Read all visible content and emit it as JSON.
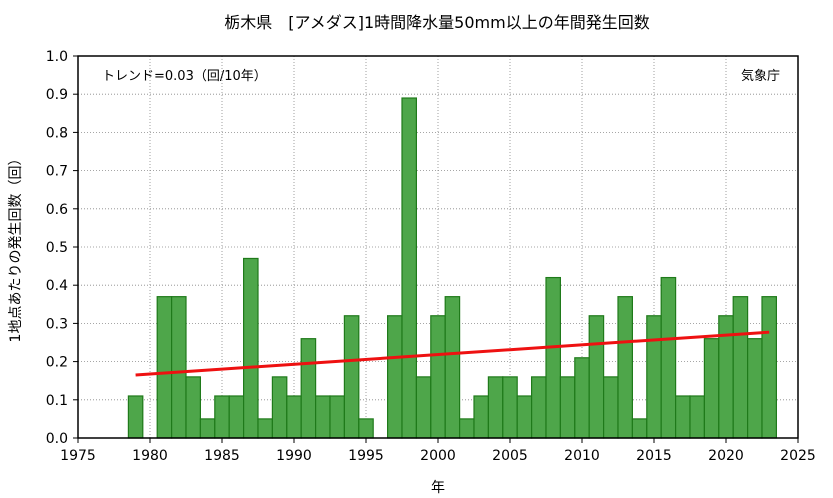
{
  "chart_data": {
    "type": "bar",
    "title": "栃木県　[アメダス]1時間降水量50mm以上の年間発生回数",
    "xlabel": "年",
    "ylabel": "1地点あたりの発生回数（回）",
    "trend_text": "トレンド=0.03（回/10年）",
    "source": "気象庁",
    "xlim": [
      1975,
      2025
    ],
    "ylim": [
      0,
      1.0
    ],
    "x_ticks": [
      "1975",
      "1980",
      "1985",
      "1990",
      "1995",
      "2000",
      "2005",
      "2010",
      "2015",
      "2020",
      "2025"
    ],
    "y_ticks": [
      "0.0",
      "0.1",
      "0.2",
      "0.3",
      "0.4",
      "0.5",
      "0.6",
      "0.7",
      "0.8",
      "0.9",
      "1.0"
    ],
    "grid": true,
    "x": [
      1979,
      1980,
      1981,
      1982,
      1983,
      1984,
      1985,
      1986,
      1987,
      1988,
      1989,
      1990,
      1991,
      1992,
      1993,
      1994,
      1995,
      1996,
      1997,
      1998,
      1999,
      2000,
      2001,
      2002,
      2003,
      2004,
      2005,
      2006,
      2007,
      2008,
      2009,
      2010,
      2011,
      2012,
      2013,
      2014,
      2015,
      2016,
      2017,
      2018,
      2019,
      2020,
      2021,
      2022,
      2023
    ],
    "values": [
      0.11,
      0,
      0.37,
      0.37,
      0.16,
      0.05,
      0.11,
      0.11,
      0.47,
      0.05,
      0.16,
      0.11,
      0.26,
      0.11,
      0.11,
      0.32,
      0.05,
      0,
      0.32,
      0.89,
      0.16,
      0.32,
      0.37,
      0.05,
      0.11,
      0.16,
      0.16,
      0.11,
      0.16,
      0.42,
      0.16,
      0.21,
      0.32,
      0.16,
      0.37,
      0.05,
      0.32,
      0.42,
      0.11,
      0.11,
      0.26,
      0.32,
      0.37,
      0.26,
      0.37
    ],
    "trend": {
      "x": [
        1979,
        2023
      ],
      "y": [
        0.165,
        0.277
      ]
    },
    "colors": {
      "bar_fill": "#4ea64a",
      "bar_stroke": "#1f7a1a",
      "trend": "#ee1111",
      "grid": "#888888"
    }
  }
}
